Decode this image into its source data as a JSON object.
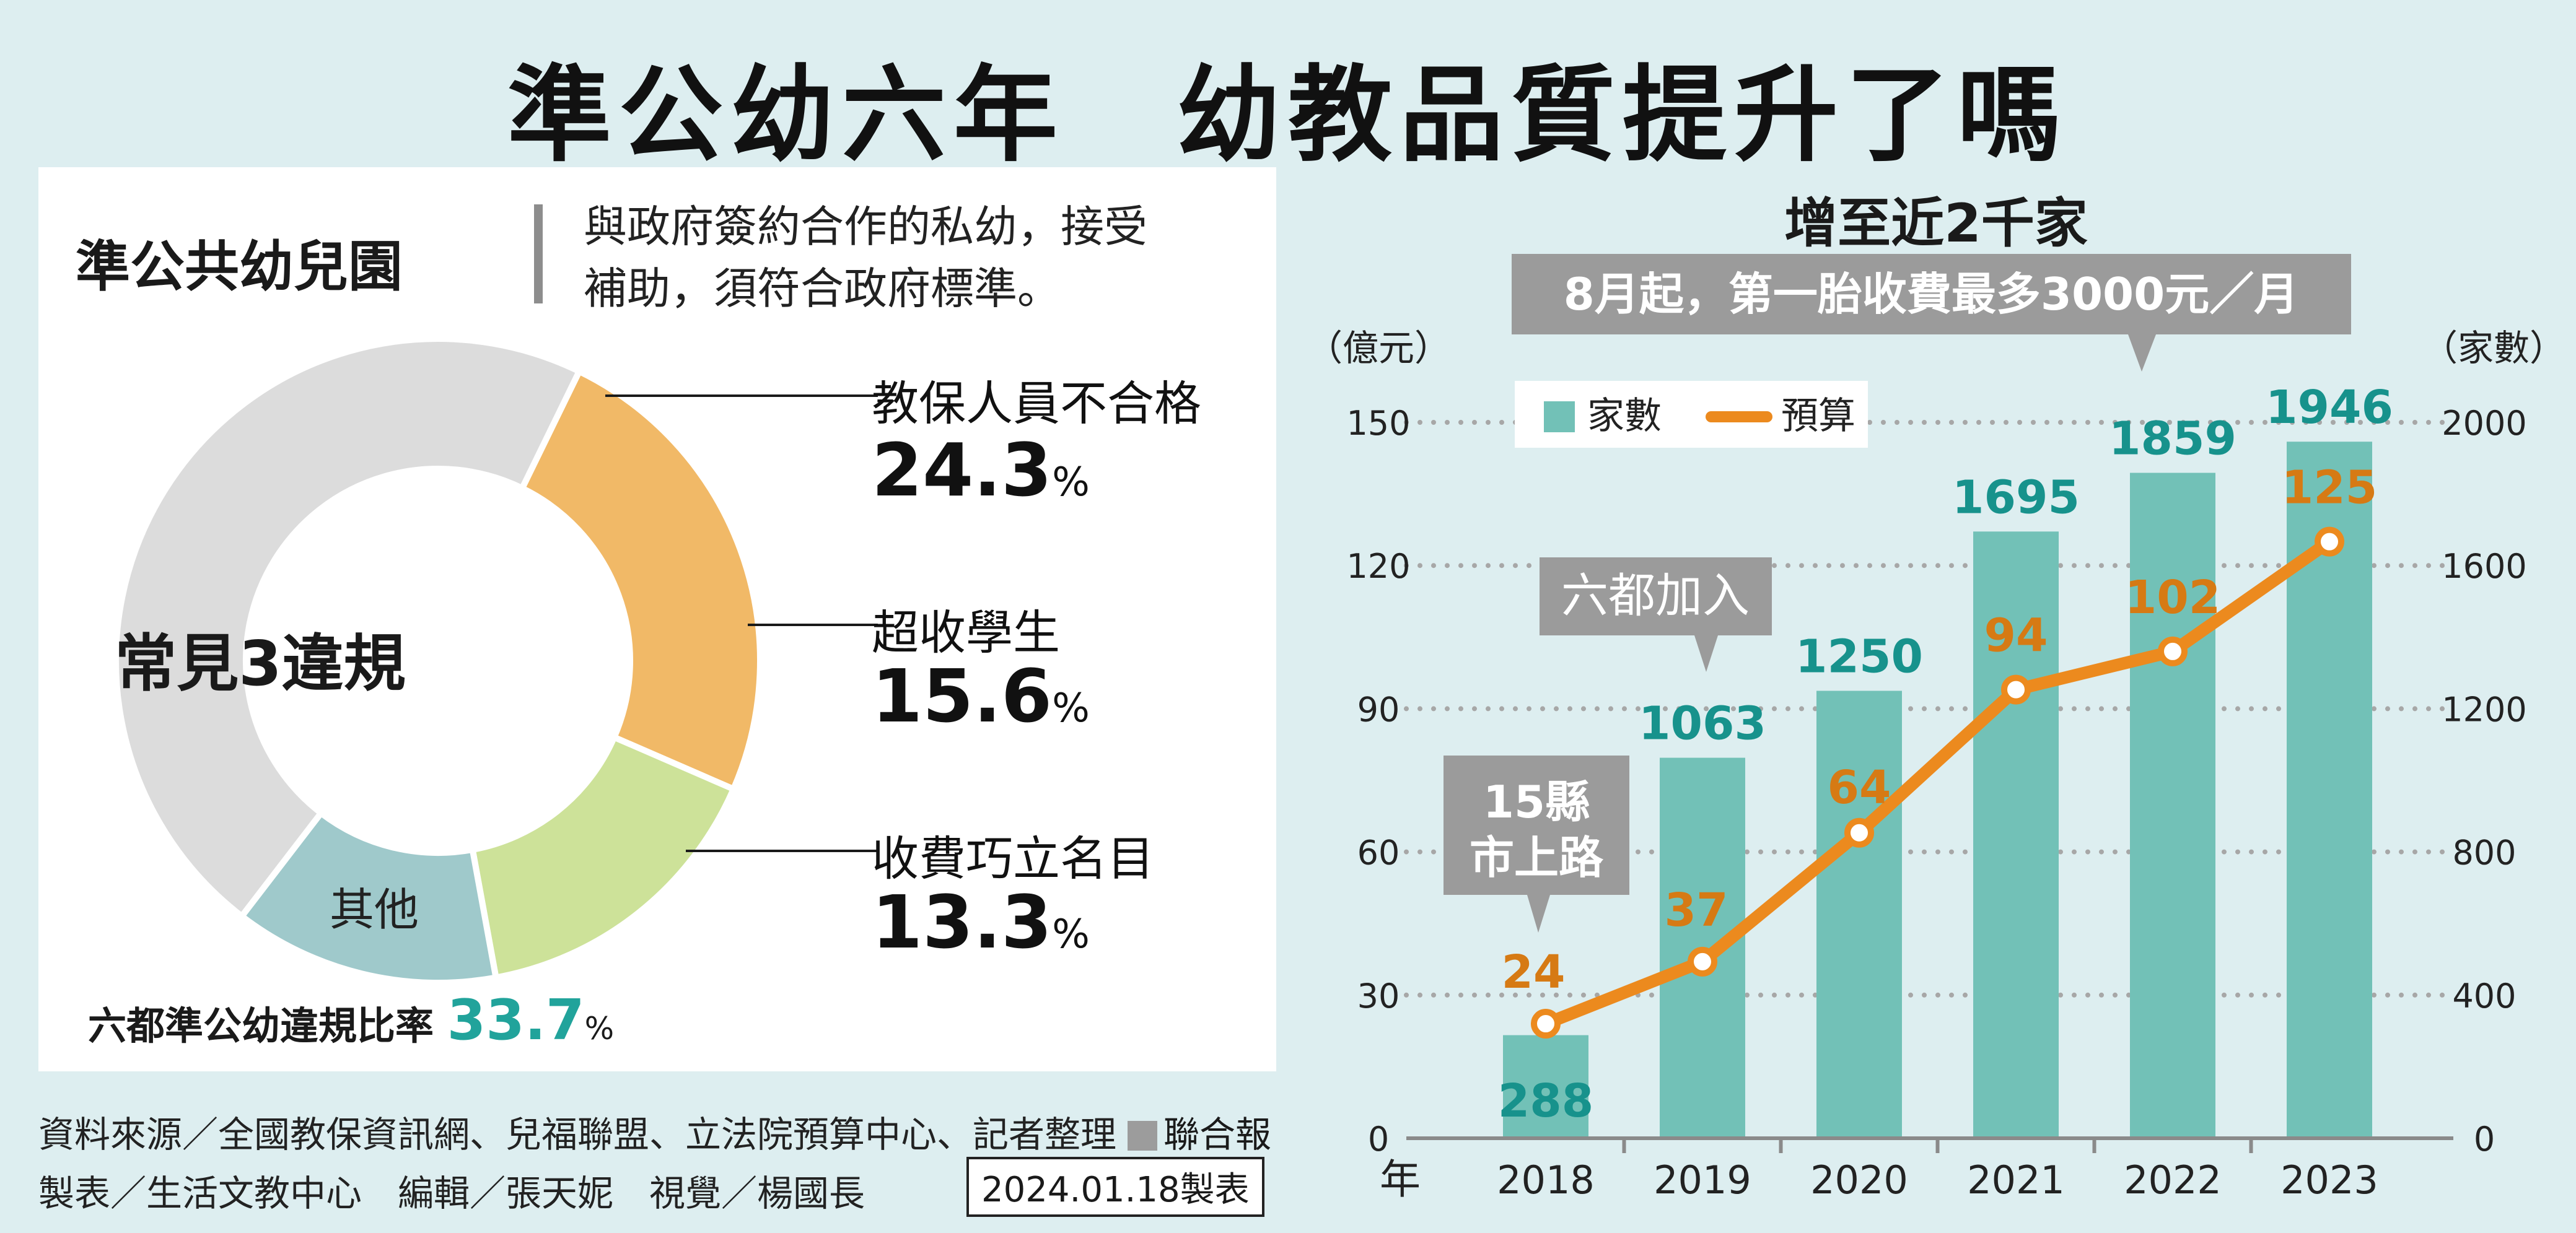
{
  "title": "準公幼六年　幼教品質提升了嗎",
  "left": {
    "heading": "準公共幼兒園",
    "definition_line1": "與政府簽約合作的私幼，接受",
    "definition_line2": "補助，須符合政府標準。",
    "center_label": "常見3違規",
    "violations": [
      {
        "label": "教保人員不合格",
        "value_text": "24.3",
        "unit": "%",
        "color": "#f1b967"
      },
      {
        "label": "超收學生",
        "value_text": "15.6",
        "unit": "%",
        "color": "#cde299"
      },
      {
        "label": "收費巧立名目",
        "value_text": "13.3",
        "unit": "%",
        "color": "#9fc9cb"
      }
    ],
    "other_label": "其他",
    "other_color": "#dcdcdc",
    "rate_label": "六都準公幼違規比率",
    "rate_value": "33.7",
    "rate_unit": "%",
    "source_line1": "資料來源／全國教保資訊網、兒福聯盟、立法院預算中心、記者整理",
    "source_line2": "製表／生活文教中心　編輯／張天妮　視覺／楊國長",
    "brand": "聯合報",
    "date_stamp": "2024.01.18製表"
  },
  "chart_data": [
    {
      "type": "pie",
      "title": "常見3違規",
      "categories": [
        "教保人員不合格",
        "超收學生",
        "收費巧立名目",
        "其他"
      ],
      "values": [
        24.3,
        15.6,
        13.3,
        46.8
      ]
    },
    {
      "type": "bar",
      "title": "增至近2千家",
      "categories": [
        "2018",
        "2019",
        "2020",
        "2021",
        "2022",
        "2023"
      ],
      "xlabel": "年",
      "y_left_label": "（億元）",
      "y_right_label": "（家數）",
      "y_left_ticks": [
        0,
        30,
        60,
        90,
        120,
        150
      ],
      "y_right_ticks": [
        0,
        400,
        800,
        1200,
        1600,
        2000
      ],
      "ylim_left": [
        0,
        150
      ],
      "ylim_right": [
        0,
        2000
      ],
      "grid": true,
      "legend_position": "top-left",
      "series": [
        {
          "name": "家數",
          "type": "bar",
          "axis": "right",
          "color": "#72c1b7",
          "label_color": "#17928c",
          "values": [
            288,
            1063,
            1250,
            1695,
            1859,
            1946
          ]
        },
        {
          "name": "預算",
          "type": "line",
          "axis": "left",
          "color": "#ec8a1e",
          "label_color": "#d67a14",
          "values": [
            24,
            37,
            64,
            94,
            102,
            125
          ]
        }
      ],
      "annotations": [
        {
          "text": "8月起，第一胎收費最多3000元／月",
          "category": "2022"
        },
        {
          "text": "六都加入",
          "category": "2019"
        },
        {
          "text": "15縣市上路",
          "category": "2018"
        }
      ]
    }
  ]
}
